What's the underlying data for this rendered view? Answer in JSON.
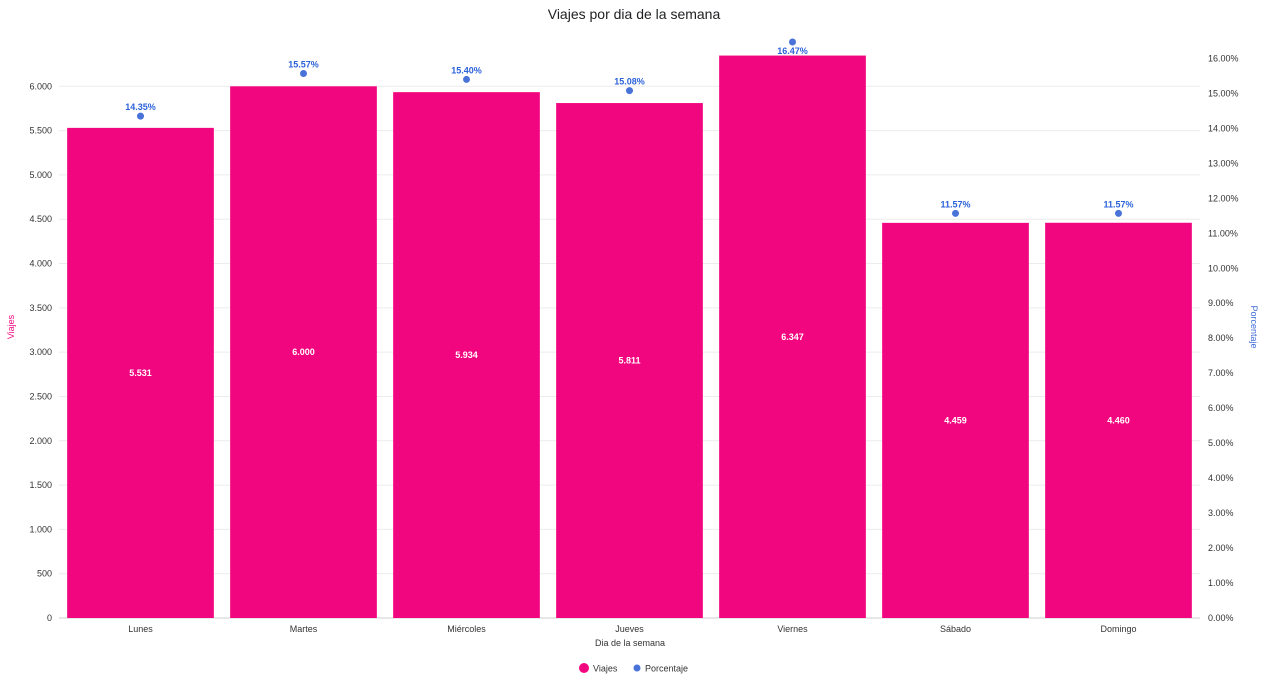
{
  "chart_data": {
    "type": "bar",
    "title": "Viajes por dia de la semana",
    "categories": [
      "Lunes",
      "Martes",
      "Miércoles",
      "Jueves",
      "Viernes",
      "Sábado",
      "Domingo"
    ],
    "series": [
      {
        "name": "Viajes",
        "axis": "left",
        "render": "bar",
        "color": "#f2067f",
        "values": [
          5531,
          6000,
          5934,
          5811,
          6347,
          4459,
          4460
        ],
        "labels": [
          "5.531",
          "6.000",
          "5.934",
          "5.811",
          "6.347",
          "4.459",
          "4.460"
        ]
      },
      {
        "name": "Porcentaje",
        "axis": "right",
        "render": "point",
        "color": "#4a73d9",
        "values": [
          14.35,
          15.57,
          15.4,
          15.08,
          16.47,
          11.57,
          11.57
        ],
        "labels": [
          "14.35%",
          "15.57%",
          "15.40%",
          "15.08%",
          "16.47%",
          "11.57%",
          "11.57%"
        ]
      }
    ],
    "xlabel": "Dia de la semana",
    "ylabel_left": "Viajes",
    "ylabel_right": "Porcentaje",
    "ylim_left": [
      0,
      6500
    ],
    "ylim_right": [
      0,
      16.47
    ],
    "yticks_left": [
      0,
      500,
      1000,
      1500,
      2000,
      2500,
      3000,
      3500,
      4000,
      4500,
      5000,
      5500,
      6000
    ],
    "yticks_left_labels": [
      "0",
      "500",
      "1.000",
      "1.500",
      "2.000",
      "2.500",
      "3.000",
      "3.500",
      "4.000",
      "4.500",
      "5.000",
      "5.500",
      "6.000"
    ],
    "yticks_right": [
      0,
      1,
      2,
      3,
      4,
      5,
      6,
      7,
      8,
      9,
      10,
      11,
      12,
      13,
      14,
      15,
      16
    ],
    "yticks_right_labels": [
      "0.00%",
      "1.00%",
      "2.00%",
      "3.00%",
      "4.00%",
      "5.00%",
      "6.00%",
      "7.00%",
      "8.00%",
      "9.00%",
      "10.00%",
      "11.00%",
      "12.00%",
      "13.00%",
      "14.00%",
      "15.00%",
      "16.00%"
    ],
    "grid": true,
    "legend_position": "bottom-center"
  }
}
